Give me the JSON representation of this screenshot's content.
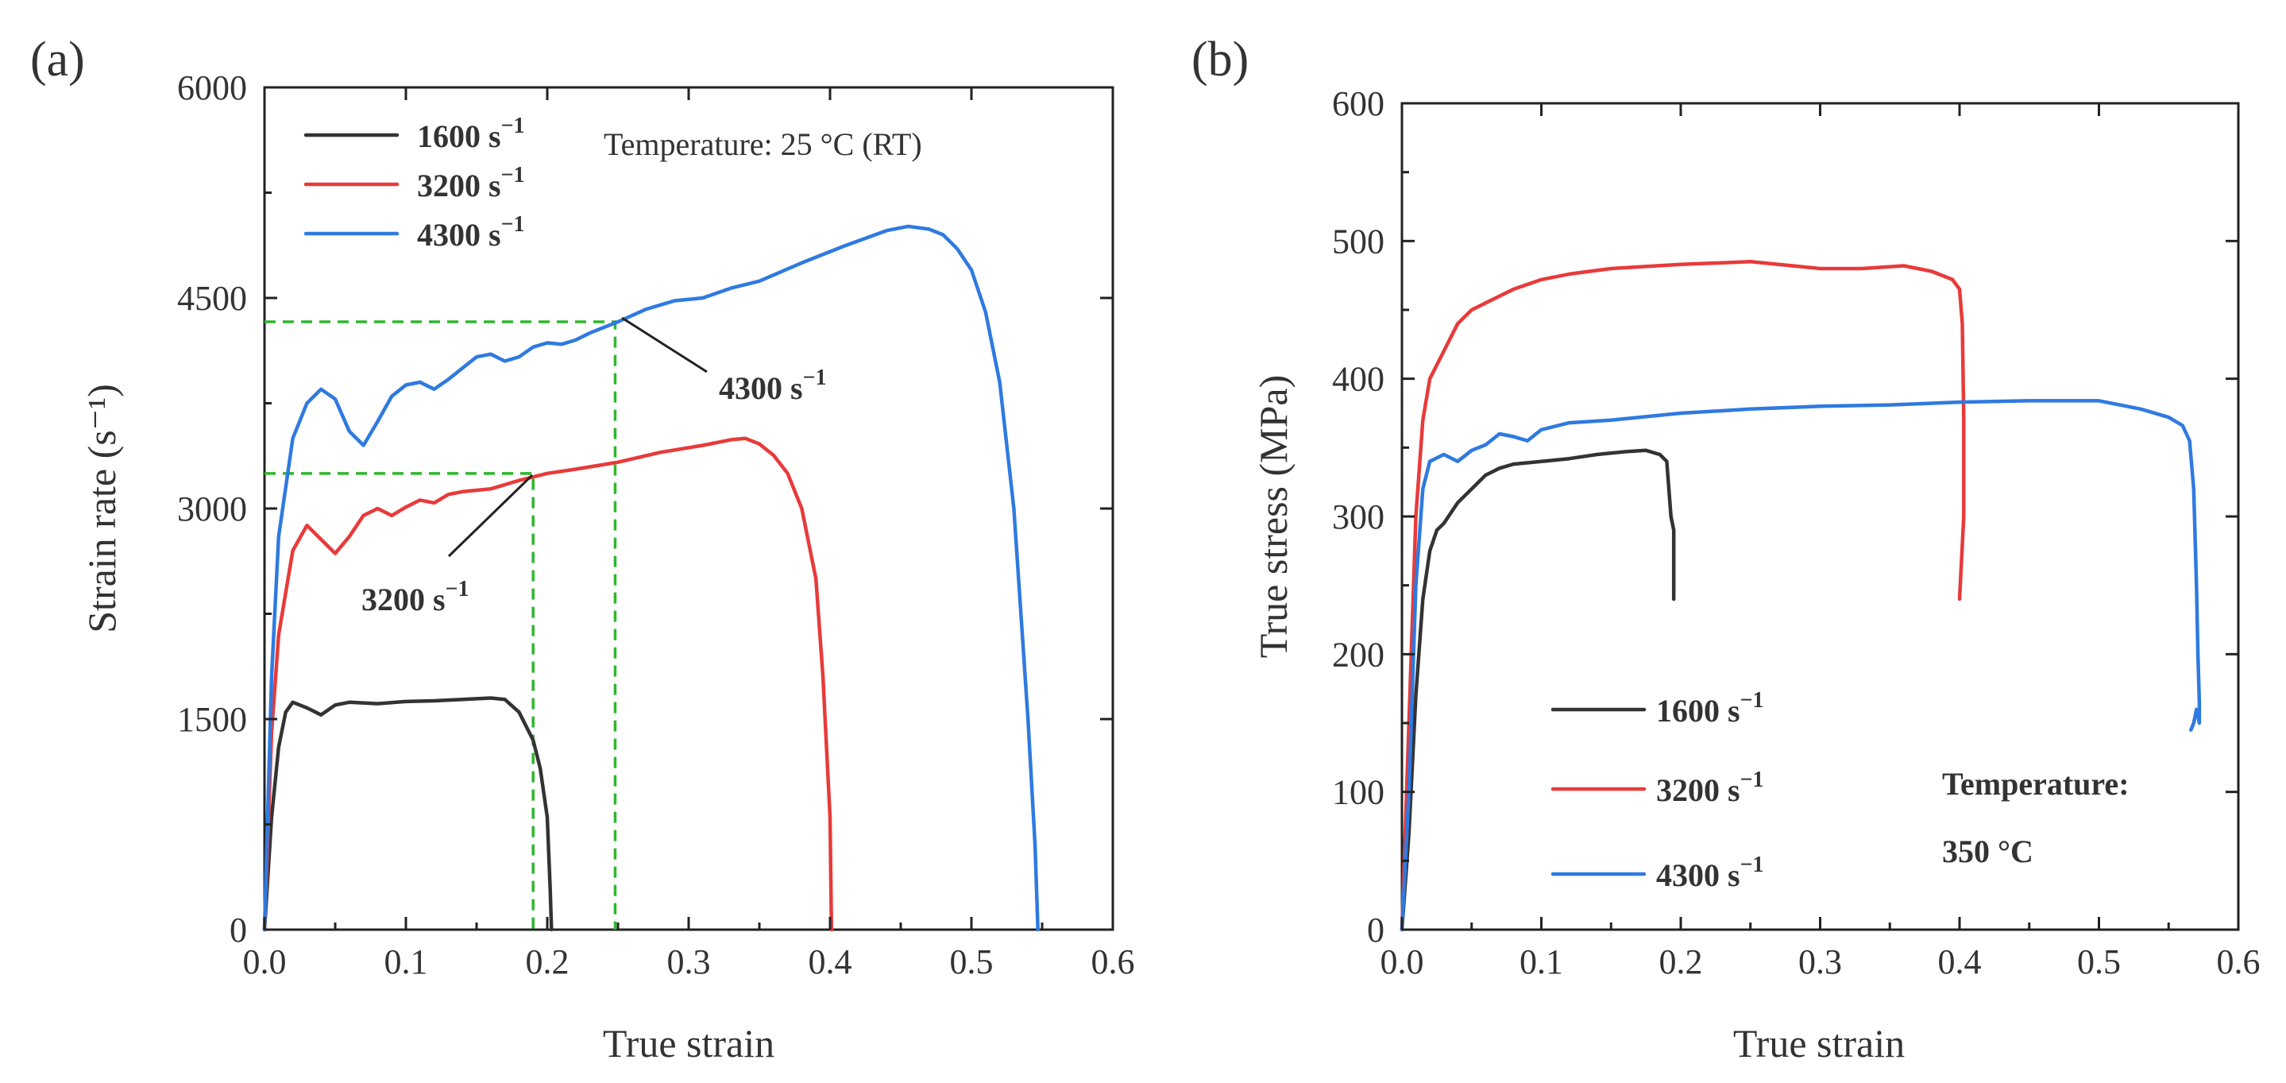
{
  "colors": {
    "s1600": "#333333",
    "s3200": "#e83a3a",
    "s4300": "#2f7ae0",
    "guide": "#2db82d"
  },
  "chart_data": [
    {
      "panel": "(a)",
      "type": "line",
      "xlabel": "True strain",
      "ylabel": "Strain rate (s⁻¹)",
      "xlim": [
        0,
        0.6
      ],
      "ylim": [
        0,
        6000
      ],
      "xticks": [
        0,
        0.1,
        0.2,
        0.3,
        0.4,
        0.5,
        0.6
      ],
      "xtick_labels": [
        "0.0",
        "0.1",
        "0.2",
        "0.3",
        "0.4",
        "0.5",
        "0.6"
      ],
      "yticks": [
        0,
        1500,
        3000,
        4500,
        6000
      ],
      "ytick_labels": [
        "0",
        "1500",
        "3000",
        "4500",
        "6000"
      ],
      "annotation_text": "Temperature:  25 °C (RT)",
      "series": [
        {
          "name": "1600 s⁻¹",
          "legend_label": "1600 s",
          "exp": "−1",
          "color_key": "s1600",
          "x": [
            0.0,
            0.005,
            0.01,
            0.015,
            0.02,
            0.03,
            0.04,
            0.05,
            0.06,
            0.08,
            0.1,
            0.12,
            0.14,
            0.16,
            0.17,
            0.18,
            0.19,
            0.195,
            0.2,
            0.202,
            0.203
          ],
          "y": [
            0,
            800,
            1300,
            1550,
            1620,
            1580,
            1530,
            1600,
            1620,
            1610,
            1625,
            1630,
            1640,
            1650,
            1640,
            1550,
            1350,
            1150,
            800,
            300,
            0
          ]
        },
        {
          "name": "3200 s⁻¹",
          "legend_label": "3200 s",
          "exp": "−1",
          "color_key": "s3200",
          "x": [
            0.0,
            0.005,
            0.01,
            0.02,
            0.03,
            0.04,
            0.05,
            0.06,
            0.07,
            0.08,
            0.09,
            0.1,
            0.11,
            0.12,
            0.13,
            0.14,
            0.15,
            0.16,
            0.18,
            0.2,
            0.22,
            0.25,
            0.28,
            0.31,
            0.33,
            0.34,
            0.35,
            0.36,
            0.37,
            0.38,
            0.39,
            0.395,
            0.4,
            0.401
          ],
          "y": [
            0,
            1400,
            2100,
            2700,
            2880,
            2780,
            2680,
            2800,
            2950,
            3000,
            2950,
            3010,
            3060,
            3040,
            3100,
            3120,
            3130,
            3140,
            3200,
            3250,
            3280,
            3330,
            3400,
            3450,
            3490,
            3500,
            3460,
            3380,
            3250,
            3000,
            2500,
            1800,
            800,
            0
          ]
        },
        {
          "name": "4300 s⁻¹",
          "legend_label": "4300 s",
          "exp": "−1",
          "color_key": "s4300",
          "x": [
            0.0,
            0.005,
            0.01,
            0.02,
            0.03,
            0.04,
            0.05,
            0.06,
            0.07,
            0.08,
            0.09,
            0.1,
            0.11,
            0.12,
            0.13,
            0.14,
            0.15,
            0.16,
            0.17,
            0.18,
            0.19,
            0.2,
            0.21,
            0.22,
            0.23,
            0.25,
            0.27,
            0.29,
            0.31,
            0.33,
            0.35,
            0.38,
            0.41,
            0.44,
            0.455,
            0.47,
            0.48,
            0.49,
            0.5,
            0.51,
            0.52,
            0.53,
            0.54,
            0.545,
            0.547
          ],
          "y": [
            0,
            1800,
            2800,
            3500,
            3750,
            3850,
            3780,
            3550,
            3450,
            3620,
            3800,
            3880,
            3900,
            3850,
            3920,
            4000,
            4080,
            4100,
            4050,
            4080,
            4150,
            4180,
            4170,
            4200,
            4250,
            4330,
            4420,
            4480,
            4500,
            4570,
            4620,
            4750,
            4870,
            4980,
            5010,
            4990,
            4950,
            4850,
            4700,
            4400,
            3900,
            3000,
            1500,
            600,
            0
          ]
        }
      ],
      "guides": [
        {
          "label": "3200 s",
          "exp": "−1",
          "x": 0.19,
          "y": 3250
        },
        {
          "label": "4300 s",
          "exp": "−1",
          "x": 0.248,
          "y": 4330
        }
      ]
    },
    {
      "panel": "(b)",
      "type": "line",
      "xlabel": "True strain",
      "ylabel": "True stress (MPa)",
      "xlim": [
        0,
        0.6
      ],
      "ylim": [
        0,
        600
      ],
      "xticks": [
        0,
        0.1,
        0.2,
        0.3,
        0.4,
        0.5,
        0.6
      ],
      "xtick_labels": [
        "0.0",
        "0.1",
        "0.2",
        "0.3",
        "0.4",
        "0.5",
        "0.6"
      ],
      "yticks": [
        0,
        100,
        200,
        300,
        400,
        500,
        600
      ],
      "ytick_labels": [
        "0",
        "100",
        "200",
        "300",
        "400",
        "500",
        "600"
      ],
      "annotation_line1": "Temperature:",
      "annotation_line2": "350 °C",
      "series": [
        {
          "name": "1600 s⁻¹",
          "legend_label": "1600 s",
          "exp": "−1",
          "color_key": "s1600",
          "x": [
            0.0,
            0.005,
            0.01,
            0.015,
            0.02,
            0.025,
            0.03,
            0.04,
            0.05,
            0.06,
            0.07,
            0.08,
            0.1,
            0.12,
            0.14,
            0.16,
            0.175,
            0.185,
            0.19,
            0.193,
            0.195,
            0.195
          ],
          "y": [
            0,
            70,
            170,
            240,
            275,
            290,
            295,
            310,
            320,
            330,
            335,
            338,
            340,
            342,
            345,
            347,
            348,
            345,
            340,
            300,
            290,
            240
          ]
        },
        {
          "name": "3200 s⁻¹",
          "legend_label": "3200 s",
          "exp": "−1",
          "color_key": "s3200",
          "x": [
            0.0,
            0.005,
            0.01,
            0.015,
            0.02,
            0.03,
            0.04,
            0.05,
            0.06,
            0.08,
            0.1,
            0.12,
            0.15,
            0.2,
            0.25,
            0.28,
            0.3,
            0.33,
            0.36,
            0.38,
            0.395,
            0.4,
            0.402,
            0.403,
            0.403,
            0.4
          ],
          "y": [
            0,
            150,
            300,
            370,
            400,
            420,
            440,
            450,
            455,
            465,
            472,
            476,
            480,
            483,
            485,
            482,
            480,
            480,
            482,
            478,
            472,
            465,
            440,
            370,
            300,
            240
          ]
        },
        {
          "name": "4300 s⁻¹",
          "legend_label": "4300 s",
          "exp": "−1",
          "color_key": "s4300",
          "x": [
            0.0,
            0.005,
            0.01,
            0.015,
            0.02,
            0.03,
            0.04,
            0.05,
            0.06,
            0.07,
            0.08,
            0.09,
            0.1,
            0.12,
            0.15,
            0.2,
            0.25,
            0.3,
            0.35,
            0.4,
            0.45,
            0.5,
            0.53,
            0.55,
            0.56,
            0.565,
            0.568,
            0.57,
            0.571,
            0.572,
            0.572,
            0.57,
            0.568,
            0.566
          ],
          "y": [
            0,
            100,
            250,
            320,
            340,
            345,
            340,
            348,
            352,
            360,
            358,
            355,
            363,
            368,
            370,
            375,
            378,
            380,
            381,
            383,
            384,
            384,
            378,
            372,
            366,
            355,
            320,
            250,
            200,
            165,
            150,
            160,
            150,
            145
          ]
        }
      ]
    }
  ]
}
